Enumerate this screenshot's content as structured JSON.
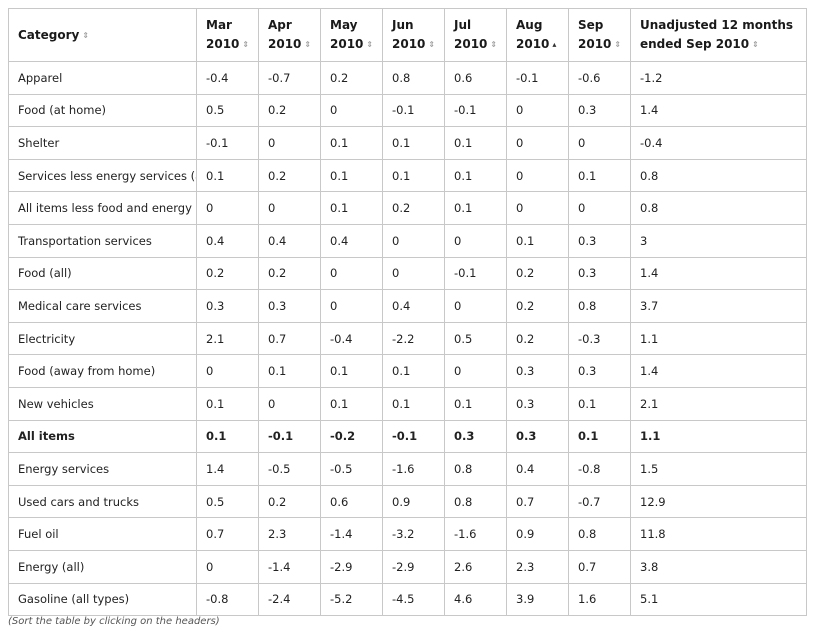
{
  "table": {
    "columns": [
      {
        "lines": [
          "Category"
        ],
        "sort": "unsorted",
        "sort_icon": "sort-both-icon",
        "glyph": "⇕"
      },
      {
        "lines": [
          "Mar",
          "2010"
        ],
        "sort": "unsorted",
        "sort_icon": "sort-both-icon",
        "glyph": "⇕"
      },
      {
        "lines": [
          "Apr",
          "2010"
        ],
        "sort": "unsorted",
        "sort_icon": "sort-both-icon",
        "glyph": "⇕"
      },
      {
        "lines": [
          "May",
          "2010"
        ],
        "sort": "unsorted",
        "sort_icon": "sort-both-icon",
        "glyph": "⇕"
      },
      {
        "lines": [
          "Jun",
          "2010"
        ],
        "sort": "unsorted",
        "sort_icon": "sort-both-icon",
        "glyph": "⇕"
      },
      {
        "lines": [
          "Jul",
          "2010"
        ],
        "sort": "unsorted",
        "sort_icon": "sort-both-icon",
        "glyph": "⇕"
      },
      {
        "lines": [
          "Aug",
          "2010"
        ],
        "sort": "ascending",
        "sort_icon": "sort-ascending-icon",
        "glyph": "▴"
      },
      {
        "lines": [
          "Sep",
          "2010"
        ],
        "sort": "unsorted",
        "sort_icon": "sort-both-icon",
        "glyph": "⇕"
      },
      {
        "lines": [
          "Unadjusted 12 months",
          "ended Sep 2010"
        ],
        "sort": "unsorted",
        "sort_icon": "sort-both-icon",
        "glyph": "⇕"
      }
    ],
    "rows": [
      {
        "cells": [
          "Apparel",
          "-0.4",
          "-0.7",
          "0.2",
          "0.8",
          "0.6",
          "-0.1",
          "-0.6",
          "-1.2"
        ],
        "bold": false
      },
      {
        "cells": [
          "Food (at home)",
          "0.5",
          "0.2",
          "0",
          "-0.1",
          "-0.1",
          "0",
          "0.3",
          "1.4"
        ],
        "bold": false
      },
      {
        "cells": [
          "Shelter",
          "-0.1",
          "0",
          "0.1",
          "0.1",
          "0.1",
          "0",
          "0",
          "-0.4"
        ],
        "bold": false
      },
      {
        "cells": [
          "Services less energy services (all)",
          "0.1",
          "0.2",
          "0.1",
          "0.1",
          "0.1",
          "0",
          "0.1",
          "0.8"
        ],
        "bold": false
      },
      {
        "cells": [
          "All items less food and energy",
          "0",
          "0",
          "0.1",
          "0.2",
          "0.1",
          "0",
          "0",
          "0.8"
        ],
        "bold": false
      },
      {
        "cells": [
          "Transportation services",
          "0.4",
          "0.4",
          "0.4",
          "0",
          "0",
          "0.1",
          "0.3",
          "3"
        ],
        "bold": false
      },
      {
        "cells": [
          "Food (all)",
          "0.2",
          "0.2",
          "0",
          "0",
          "-0.1",
          "0.2",
          "0.3",
          "1.4"
        ],
        "bold": false
      },
      {
        "cells": [
          "Medical care services",
          "0.3",
          "0.3",
          "0",
          "0.4",
          "0",
          "0.2",
          "0.8",
          "3.7"
        ],
        "bold": false
      },
      {
        "cells": [
          "Electricity",
          "2.1",
          "0.7",
          "-0.4",
          "-2.2",
          "0.5",
          "0.2",
          "-0.3",
          "1.1"
        ],
        "bold": false
      },
      {
        "cells": [
          "Food (away from home)",
          "0",
          "0.1",
          "0.1",
          "0.1",
          "0",
          "0.3",
          "0.3",
          "1.4"
        ],
        "bold": false
      },
      {
        "cells": [
          "New vehicles",
          "0.1",
          "0",
          "0.1",
          "0.1",
          "0.1",
          "0.3",
          "0.1",
          "2.1"
        ],
        "bold": false
      },
      {
        "cells": [
          "All items",
          "0.1",
          "-0.1",
          "-0.2",
          "-0.1",
          "0.3",
          "0.3",
          "0.1",
          "1.1"
        ],
        "bold": true
      },
      {
        "cells": [
          "Energy services",
          "1.4",
          "-0.5",
          "-0.5",
          "-1.6",
          "0.8",
          "0.4",
          "-0.8",
          "1.5"
        ],
        "bold": false
      },
      {
        "cells": [
          "Used cars and trucks",
          "0.5",
          "0.2",
          "0.6",
          "0.9",
          "0.8",
          "0.7",
          "-0.7",
          "12.9"
        ],
        "bold": false
      },
      {
        "cells": [
          "Fuel oil",
          "0.7",
          "2.3",
          "-1.4",
          "-3.2",
          "-1.6",
          "0.9",
          "0.8",
          "11.8"
        ],
        "bold": false
      },
      {
        "cells": [
          "Energy (all)",
          "0",
          "-1.4",
          "-2.9",
          "-2.9",
          "2.6",
          "2.3",
          "0.7",
          "3.8"
        ],
        "bold": false
      },
      {
        "cells": [
          "Gasoline (all types)",
          "-0.8",
          "-2.4",
          "-5.2",
          "-4.5",
          "4.6",
          "3.9",
          "1.6",
          "5.1"
        ],
        "bold": false
      }
    ]
  },
  "caption": "(Sort the table by clicking on the headers)",
  "colors": {
    "border": "#c8c8c8",
    "text": "#222222",
    "sort_inactive": "#a0a0a0",
    "sort_active": "#333333"
  }
}
